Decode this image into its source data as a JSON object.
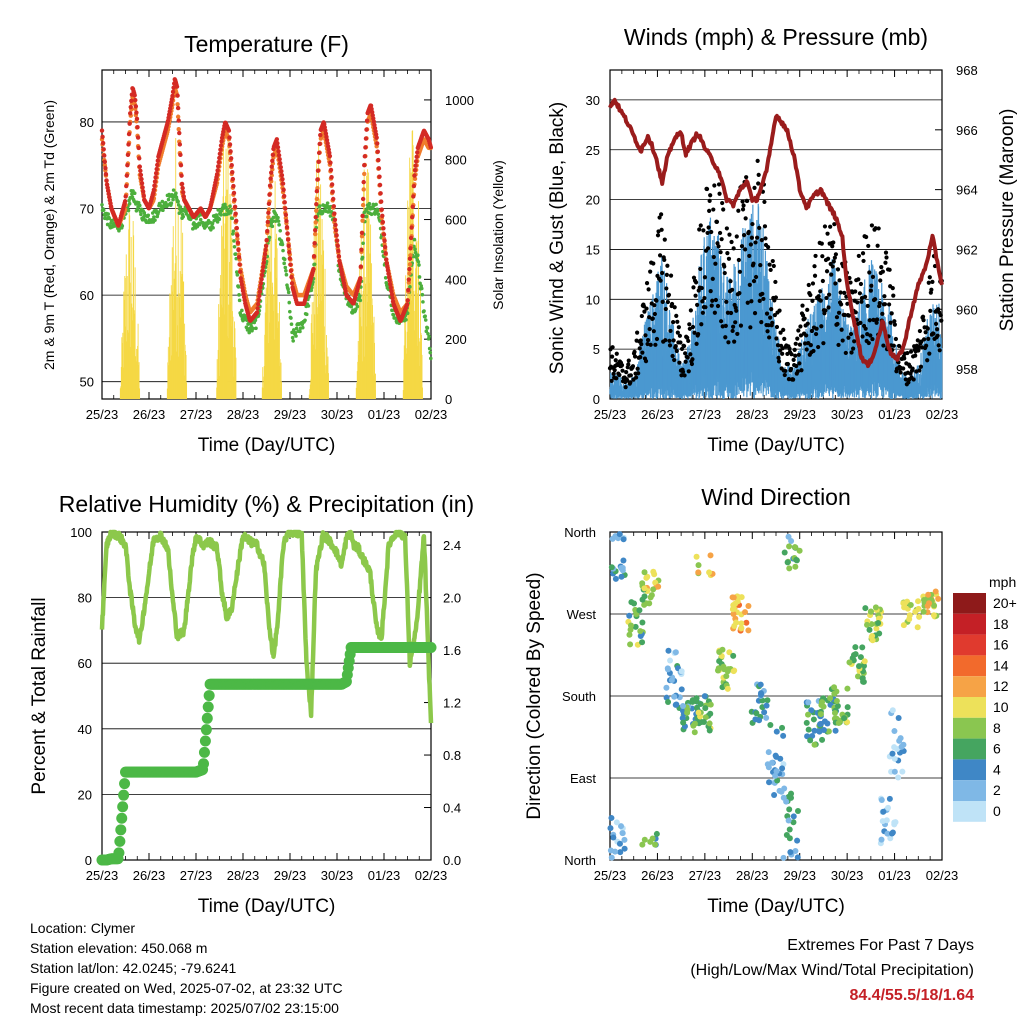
{
  "x_ticks": [
    "25/23",
    "26/23",
    "27/23",
    "28/23",
    "29/23",
    "30/23",
    "01/23",
    "02/23"
  ],
  "time_axis_label": "Time (Day/UTC)",
  "colors": {
    "temp_red": "#d42a24",
    "temp_orange": "#f07c2c",
    "dewpoint_green": "#4caf3c",
    "solar_yellow": "#f5d844",
    "wind_blue": "#4b98d0",
    "gust_black": "#000000",
    "pressure_maroon": "#9a1c1c",
    "rh_green": "#8cc84b",
    "precip_green": "#4cb846"
  },
  "chart_data": [
    {
      "id": "temperature",
      "type": "line",
      "title": "Temperature (F)",
      "xlabel": "Time (Day/UTC)",
      "ylabel": "2m & 9m T (Red, Orange) & 2m Td (Green)",
      "y2label": "Solar Insolation (Yellow)",
      "ylim": [
        48,
        86
      ],
      "y_ticks": [
        50,
        60,
        70,
        80
      ],
      "y2lim": [
        0,
        1100
      ],
      "y2_ticks": [
        0,
        200,
        400,
        600,
        800,
        1000
      ],
      "grid_y": [
        50,
        60,
        70,
        80
      ],
      "x": [
        0,
        0.1,
        0.2,
        0.35,
        0.5,
        0.55,
        0.6,
        0.65,
        0.7,
        0.75,
        0.8,
        0.9,
        1.0,
        1.1,
        1.2,
        1.4,
        1.5,
        1.55,
        1.6,
        1.65,
        1.7,
        1.75,
        1.85,
        1.95,
        2.1,
        2.2,
        2.3,
        2.45,
        2.55,
        2.62,
        2.7,
        2.76,
        2.85,
        2.95,
        3.05,
        3.15,
        3.3,
        3.5,
        3.58,
        3.65,
        3.72,
        3.85,
        3.95,
        4.05,
        4.15,
        4.3,
        4.5,
        4.58,
        4.65,
        4.72,
        4.85,
        4.95,
        5.05,
        5.2,
        5.35,
        5.5,
        5.58,
        5.65,
        5.72,
        5.85,
        5.95,
        6.05,
        6.2,
        6.35,
        6.5,
        6.58,
        6.65,
        6.72,
        6.85,
        6.95,
        7.0
      ],
      "series": [
        {
          "name": "2m T",
          "values": [
            79,
            73,
            70,
            68,
            71,
            76,
            81,
            84,
            83,
            80,
            75,
            71,
            70,
            72,
            76,
            80,
            83,
            85,
            84,
            78,
            73,
            71,
            70,
            69,
            70,
            69,
            70,
            74,
            78,
            80,
            79,
            75,
            69,
            62,
            59,
            57,
            58,
            66,
            73,
            77,
            78,
            73,
            67,
            61,
            59,
            59,
            63,
            73,
            79,
            80,
            76,
            69,
            64,
            60,
            59,
            62,
            75,
            81,
            82,
            78,
            70,
            64,
            59,
            57,
            59,
            67,
            74,
            77,
            79,
            78,
            77
          ]
        },
        {
          "name": "9m T",
          "values": [
            78,
            73,
            70,
            68,
            70,
            75,
            80,
            83,
            82,
            79,
            74,
            71,
            70,
            71,
            75,
            79,
            82,
            84,
            83,
            77,
            72,
            71,
            70,
            69,
            70,
            69,
            70,
            73,
            77,
            79,
            78,
            74,
            68,
            63,
            60,
            58,
            59,
            66,
            72,
            76,
            77,
            72,
            67,
            62,
            60,
            60,
            63,
            72,
            78,
            79,
            75,
            68,
            64,
            61,
            60,
            62,
            74,
            80,
            81,
            77,
            69,
            64,
            60,
            58,
            59,
            66,
            73,
            76,
            78,
            77,
            77
          ]
        },
        {
          "name": "2m Td",
          "values": [
            70,
            69,
            68,
            68,
            69,
            70,
            71,
            72,
            71,
            70,
            70,
            69,
            69,
            69,
            70,
            71,
            71,
            72,
            71,
            70,
            69,
            70,
            69,
            68,
            69,
            68,
            68,
            69,
            70,
            70,
            70,
            69,
            64,
            58,
            57,
            56,
            57,
            64,
            68,
            69,
            69,
            65,
            61,
            55,
            56,
            57,
            62,
            69,
            70,
            70,
            70,
            68,
            63,
            60,
            58,
            60,
            69,
            70,
            70,
            70,
            67,
            62,
            58,
            57,
            58,
            63,
            66,
            64,
            58,
            55,
            53
          ]
        }
      ],
      "solar_peaks_days": [
        0.6,
        1.6,
        2.65,
        3.62,
        4.62,
        5.62,
        6.62
      ],
      "solar_peak_values": [
        710,
        940,
        950,
        830,
        870,
        820,
        1060
      ]
    },
    {
      "id": "winds",
      "type": "line",
      "title": "Winds (mph) & Pressure (mb)",
      "xlabel": "Time (Day/UTC)",
      "ylabel": "Sonic Wind & Gust (Blue, Black)",
      "y2label": "Station Pressure (Maroon)",
      "ylim": [
        0,
        33
      ],
      "y_ticks": [
        0,
        5,
        10,
        15,
        20,
        25,
        30
      ],
      "y2lim": [
        957,
        968
      ],
      "y2_ticks": [
        958,
        960,
        962,
        964,
        966,
        968
      ],
      "grid_y": [
        5,
        10,
        15,
        20,
        25,
        30
      ],
      "pressure_x": [
        0,
        0.1,
        0.2,
        0.35,
        0.5,
        0.65,
        0.8,
        0.95,
        1.1,
        1.2,
        1.35,
        1.5,
        1.6,
        1.7,
        1.85,
        2.0,
        2.15,
        2.3,
        2.45,
        2.6,
        2.75,
        2.9,
        3.0,
        3.1,
        3.3,
        3.5,
        3.65,
        3.75,
        3.9,
        4.0,
        4.15,
        4.3,
        4.45,
        4.6,
        4.75,
        4.9,
        5.0,
        5.1,
        5.3,
        5.45,
        5.6,
        5.75,
        5.9,
        6.05,
        6.2,
        6.35,
        6.5,
        6.65,
        6.8,
        6.9,
        7.0
      ],
      "pressure": [
        966.8,
        967.0,
        966.7,
        966.3,
        965.8,
        965.3,
        965.8,
        965.2,
        964.2,
        965.0,
        965.7,
        965.9,
        965.2,
        965.5,
        965.9,
        965.4,
        965.0,
        964.6,
        963.7,
        963.5,
        964.0,
        964.3,
        963.6,
        963.7,
        964.6,
        966.5,
        966.2,
        965.9,
        965.0,
        964.0,
        963.4,
        963.8,
        964.0,
        963.5,
        963.1,
        962.4,
        960.8,
        960.0,
        958.4,
        958.1,
        958.7,
        959.6,
        958.6,
        958.3,
        958.8,
        959.9,
        960.8,
        961.4,
        962.4,
        961.6,
        960.8
      ],
      "wind_envelope_x": [
        0,
        0.3,
        0.5,
        0.7,
        0.9,
        1.1,
        1.3,
        1.5,
        1.7,
        1.9,
        2.1,
        2.3,
        2.5,
        2.7,
        2.9,
        3.1,
        3.3,
        3.5,
        3.7,
        3.9,
        4.1,
        4.3,
        4.5,
        4.7,
        4.9,
        5.1,
        5.3,
        5.5,
        5.7,
        5.9,
        6.1,
        6.3,
        6.5,
        6.7,
        6.9,
        7.0
      ],
      "wind": [
        3,
        1.5,
        2,
        6,
        9,
        13,
        7,
        3,
        5,
        12,
        16,
        14,
        10,
        13,
        16,
        17,
        13,
        6,
        3,
        3,
        6,
        8,
        10,
        12,
        8,
        6,
        9,
        12,
        10,
        8,
        3,
        2,
        3,
        7,
        9,
        7
      ],
      "gust": [
        5,
        3,
        4,
        9,
        13,
        17,
        11,
        5,
        8,
        16,
        20,
        19,
        14,
        18,
        20,
        21,
        18,
        10,
        5,
        5,
        9,
        12,
        15,
        17,
        13,
        10,
        14,
        16,
        15,
        12,
        5,
        4,
        6,
        11,
        14,
        11
      ]
    },
    {
      "id": "humidity",
      "type": "line",
      "title": "Relative Humidity (%) & Precipitation (in)",
      "xlabel": "Time (Day/UTC)",
      "ylabel": "Percent & Total Rainfall",
      "ylim": [
        0,
        100
      ],
      "y_ticks": [
        0,
        20,
        40,
        60,
        80,
        100
      ],
      "y2lim": [
        0,
        2.5
      ],
      "y2_ticks": [
        "0.0",
        "0.4",
        "0.8",
        "1.2",
        "1.6",
        "2.0",
        "2.4"
      ],
      "grid_y": [
        20,
        40,
        60,
        80
      ],
      "x": [
        0,
        0.1,
        0.2,
        0.35,
        0.5,
        0.6,
        0.7,
        0.8,
        0.95,
        1.1,
        1.25,
        1.4,
        1.5,
        1.6,
        1.75,
        1.9,
        2.0,
        2.15,
        2.3,
        2.45,
        2.55,
        2.65,
        2.75,
        2.9,
        3.0,
        3.15,
        3.3,
        3.45,
        3.55,
        3.65,
        3.75,
        3.85,
        3.95,
        4.1,
        4.25,
        4.35,
        4.45,
        4.55,
        4.7,
        4.8,
        4.95,
        5.1,
        5.2,
        5.3,
        5.35,
        5.45,
        5.55,
        5.7,
        5.85,
        5.95,
        6.1,
        6.25,
        6.35,
        6.45,
        6.55,
        6.7,
        6.85,
        6.95,
        7.0
      ],
      "series": [
        {
          "name": "RH",
          "values": [
            71,
            96,
            100,
            99,
            96,
            82,
            72,
            67,
            82,
            98,
            99,
            95,
            80,
            68,
            70,
            90,
            99,
            96,
            97,
            95,
            82,
            74,
            76,
            90,
            99,
            97,
            96,
            90,
            72,
            62,
            74,
            95,
            100,
            100,
            99,
            60,
            45,
            88,
            99,
            98,
            95,
            90,
            98,
            100,
            96,
            95,
            92,
            88,
            70,
            68,
            96,
            100,
            100,
            98,
            60,
            72,
            99,
            60,
            42
          ]
        },
        {
          "name": "Precip",
          "values": [
            0,
            0,
            0.01,
            0.01,
            0.67,
            0.67,
            0.67,
            0.67,
            0.67,
            0.67,
            0.67,
            0.67,
            0.67,
            0.67,
            0.67,
            0.67,
            0.67,
            0.69,
            1.34,
            1.34,
            1.34,
            1.34,
            1.34,
            1.34,
            1.34,
            1.34,
            1.34,
            1.34,
            1.34,
            1.34,
            1.34,
            1.34,
            1.34,
            1.34,
            1.34,
            1.34,
            1.34,
            1.34,
            1.34,
            1.34,
            1.34,
            1.34,
            1.36,
            1.62,
            1.62,
            1.62,
            1.62,
            1.62,
            1.62,
            1.62,
            1.62,
            1.62,
            1.62,
            1.62,
            1.62,
            1.62,
            1.62,
            1.62,
            1.62
          ]
        }
      ]
    },
    {
      "id": "direction",
      "type": "scatter",
      "title": "Wind Direction",
      "xlabel": "Time (Day/UTC)",
      "ylabel": "Direction (Colored By Speed)",
      "y_ticks": [
        "North",
        "East",
        "South",
        "West",
        "North"
      ],
      "ylim": [
        0,
        360
      ],
      "legend_title": "mph",
      "legend_levels": [
        "20+",
        "18",
        "16",
        "14",
        "12",
        "10",
        "8",
        "6",
        "4",
        "2",
        "0"
      ],
      "legend_colors": [
        "#8e1a1a",
        "#c42026",
        "#e03a2e",
        "#f26a2c",
        "#f6a346",
        "#ede15a",
        "#8ac650",
        "#45a560",
        "#3f87c6",
        "#7fb8e6",
        "#bfe3f7"
      ],
      "clusters": [
        {
          "day": 0.15,
          "dir": 20,
          "spread": 60,
          "speed": 2,
          "n": 26
        },
        {
          "day": 0.2,
          "dir": 320,
          "spread": 30,
          "speed": 3,
          "n": 12
        },
        {
          "day": 0.55,
          "dir": 260,
          "spread": 50,
          "speed": 7,
          "n": 22
        },
        {
          "day": 0.85,
          "dir": 300,
          "spread": 40,
          "speed": 9,
          "n": 22
        },
        {
          "day": 0.85,
          "dir": 20,
          "spread": 20,
          "speed": 6,
          "n": 8
        },
        {
          "day": 1.35,
          "dir": 200,
          "spread": 70,
          "speed": 3,
          "n": 26
        },
        {
          "day": 1.7,
          "dir": 160,
          "spread": 40,
          "speed": 5,
          "n": 26
        },
        {
          "day": 1.95,
          "dir": 160,
          "spread": 40,
          "speed": 7,
          "n": 26
        },
        {
          "day": 2.0,
          "dir": 320,
          "spread": 30,
          "speed": 10,
          "n": 8
        },
        {
          "day": 2.45,
          "dir": 210,
          "spread": 45,
          "speed": 8,
          "n": 26
        },
        {
          "day": 2.75,
          "dir": 270,
          "spread": 40,
          "speed": 12,
          "n": 28
        },
        {
          "day": 3.15,
          "dir": 170,
          "spread": 50,
          "speed": 4,
          "n": 22
        },
        {
          "day": 3.5,
          "dir": 110,
          "spread": 80,
          "speed": 3,
          "n": 28
        },
        {
          "day": 3.8,
          "dir": 30,
          "spread": 90,
          "speed": 4,
          "n": 24
        },
        {
          "day": 3.85,
          "dir": 330,
          "spread": 30,
          "speed": 6,
          "n": 14
        },
        {
          "day": 4.3,
          "dir": 150,
          "spread": 50,
          "speed": 5,
          "n": 24
        },
        {
          "day": 4.6,
          "dir": 160,
          "spread": 40,
          "speed": 6,
          "n": 26
        },
        {
          "day": 4.85,
          "dir": 170,
          "spread": 40,
          "speed": 7,
          "n": 24
        },
        {
          "day": 5.2,
          "dir": 215,
          "spread": 40,
          "speed": 8,
          "n": 26
        },
        {
          "day": 5.55,
          "dir": 260,
          "spread": 40,
          "speed": 8,
          "n": 26
        },
        {
          "day": 5.85,
          "dir": 40,
          "spread": 60,
          "speed": 2,
          "n": 20
        },
        {
          "day": 6.05,
          "dir": 130,
          "spread": 80,
          "speed": 2,
          "n": 20
        },
        {
          "day": 6.35,
          "dir": 270,
          "spread": 30,
          "speed": 9,
          "n": 18
        },
        {
          "day": 6.75,
          "dir": 280,
          "spread": 30,
          "speed": 10,
          "n": 26
        }
      ]
    }
  ],
  "info": {
    "location": "Location: Clymer",
    "elevation": "Station elevation: 450.068 m",
    "latlon": "Station lat/lon: 42.0245; -79.6241",
    "created": "Figure created on Wed, 2025-07-02, at 23:32 UTC",
    "timestamp": "Most recent data timestamp: 2025/07/02 23:15:00"
  },
  "extremes": {
    "title": "Extremes For Past 7 Days",
    "subtitle": "(High/Low/Max Wind/Total Precipitation)",
    "values": "84.4/55.5/18/1.64"
  }
}
